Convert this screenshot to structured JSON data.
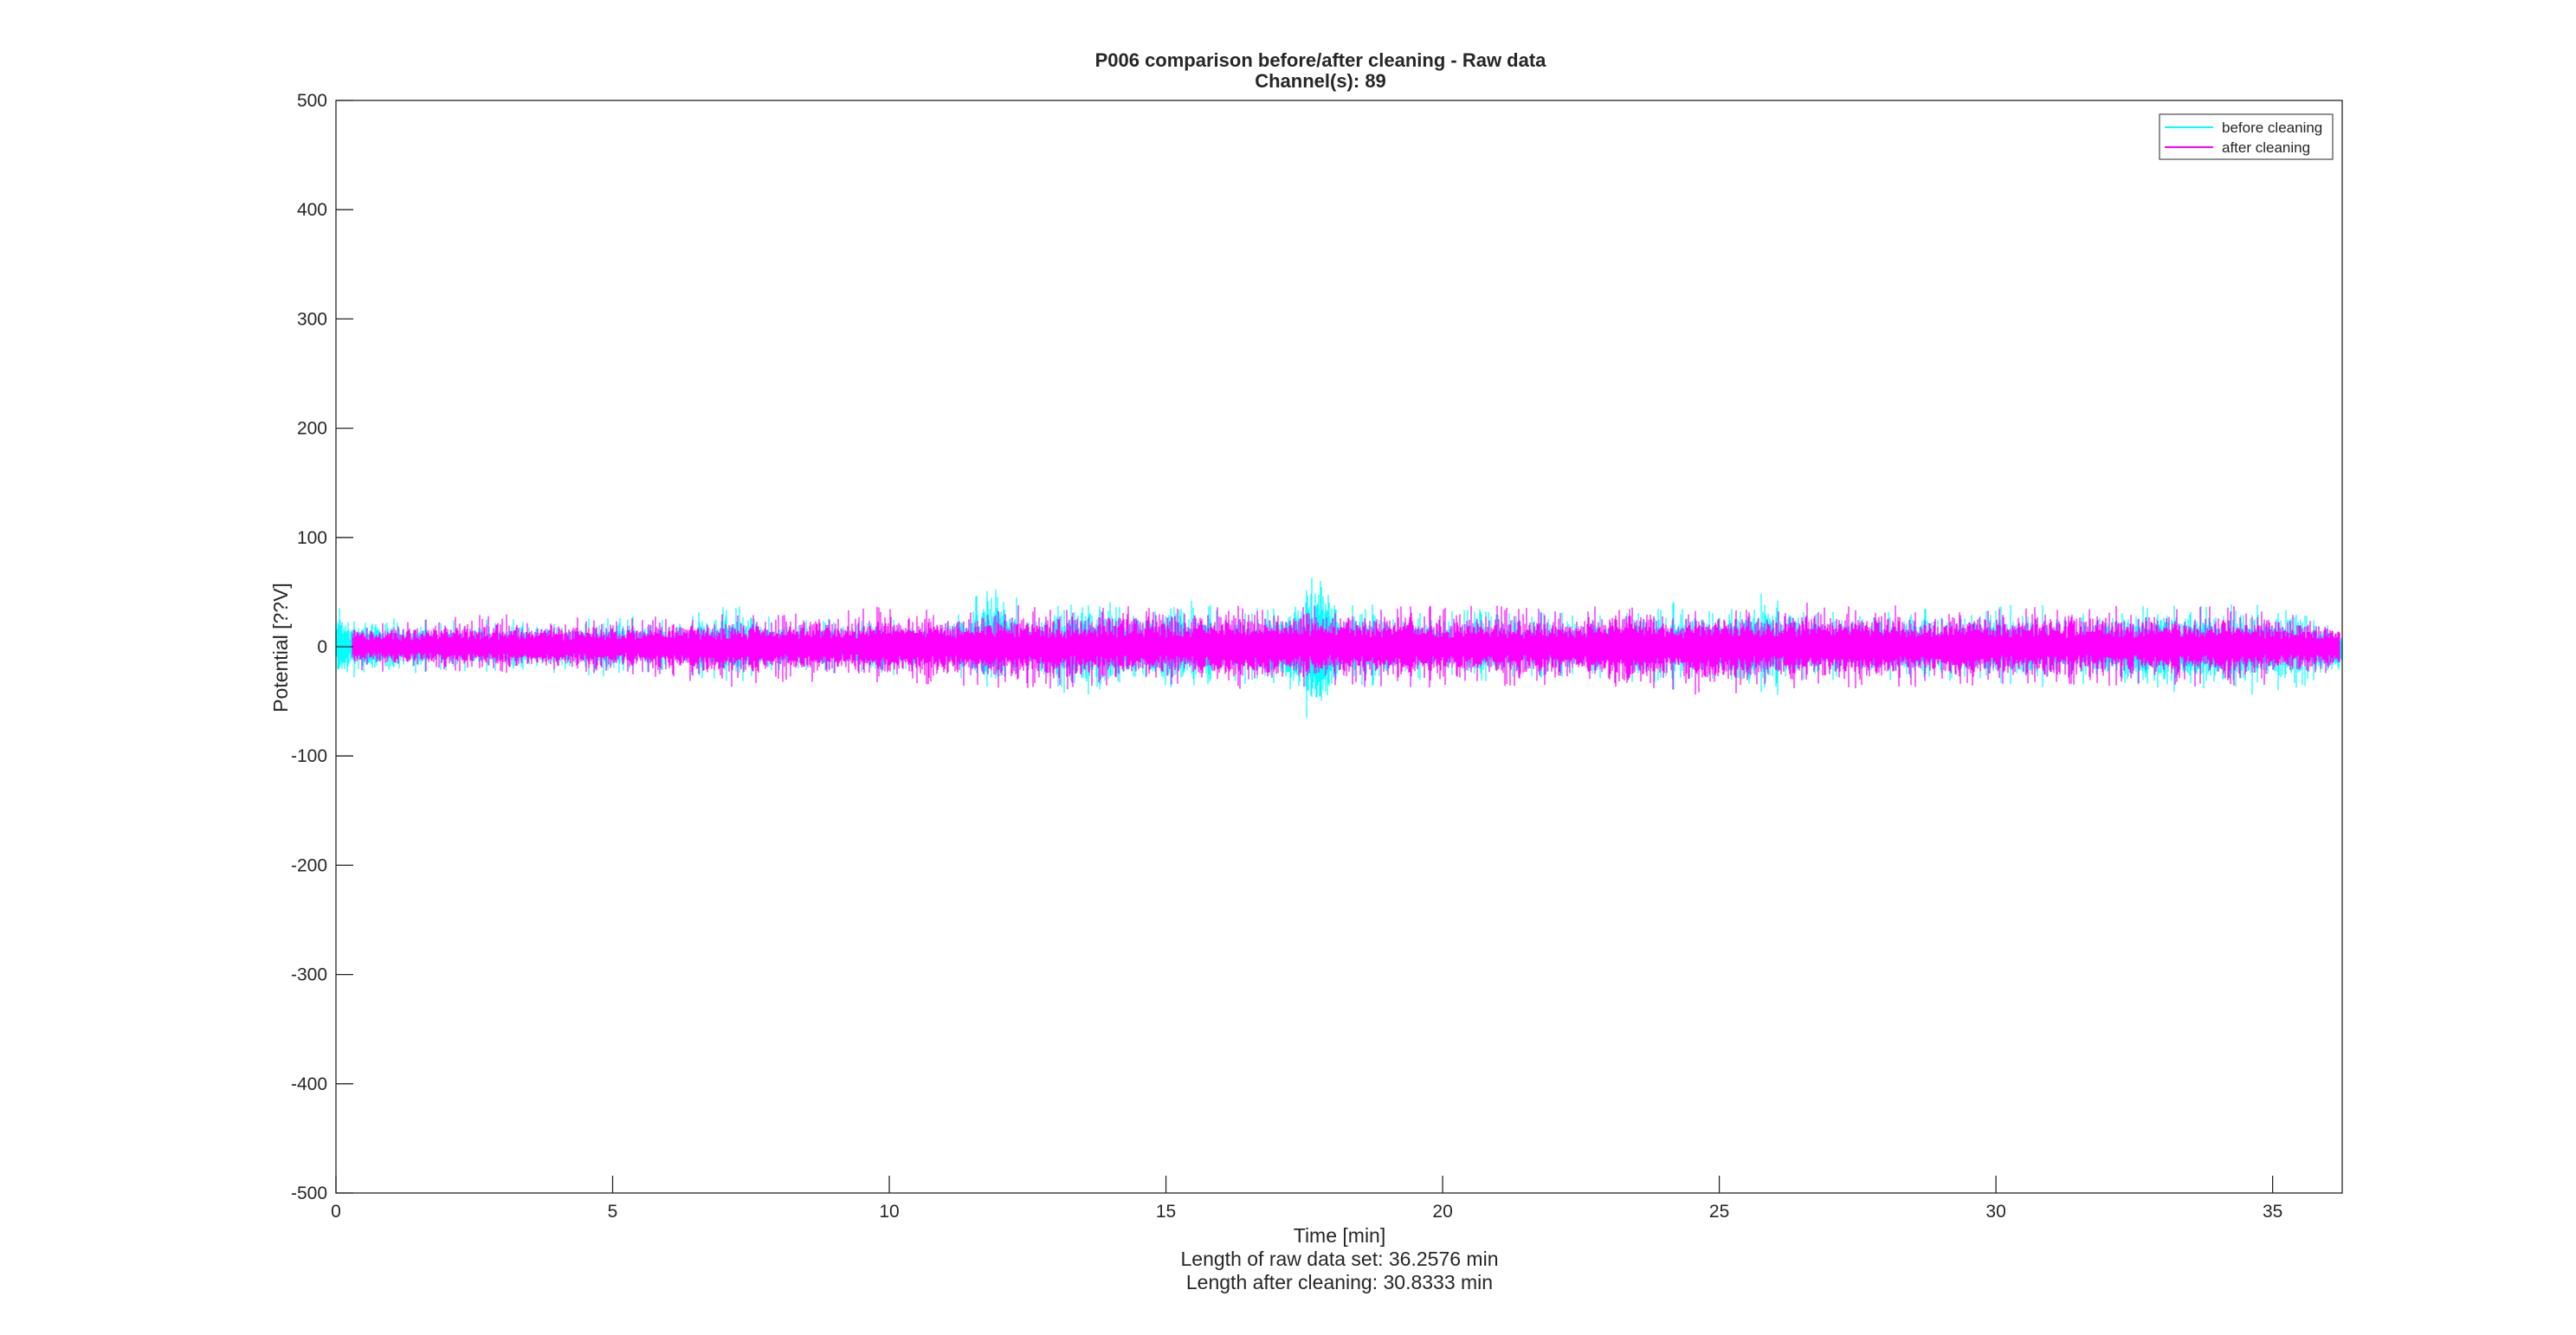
{
  "chart_data": {
    "type": "line",
    "title": "P006 comparison before/after cleaning - Raw data",
    "subtitle": "Channel(s): 89",
    "xlabel": "Time [min]",
    "xlabel_extra": [
      "Length of raw data set: 36.2576 min",
      "Length after cleaning: 30.8333 min"
    ],
    "ylabel": "Potential [??V]",
    "xlim": [
      0,
      36.2576
    ],
    "ylim": [
      -500,
      500
    ],
    "xticks": [
      0,
      5,
      10,
      15,
      20,
      25,
      30,
      35
    ],
    "yticks": [
      -500,
      -400,
      -300,
      -200,
      -100,
      0,
      100,
      200,
      300,
      400,
      500
    ],
    "xtick_labels": [
      "0",
      "5",
      "10",
      "15",
      "20",
      "25",
      "30",
      "35"
    ],
    "ytick_labels": [
      "-500",
      "-400",
      "-300",
      "-200",
      "-100",
      "0",
      "100",
      "200",
      "300",
      "400",
      "500"
    ],
    "grid": false,
    "legend_position": "top-right",
    "series": [
      {
        "name": "before cleaning",
        "color": "#00ffff",
        "band": [
          [
            0.0,
            -25,
            35
          ],
          [
            0.05,
            -45,
            55
          ],
          [
            0.2,
            -30,
            30
          ],
          [
            0.5,
            -25,
            28
          ],
          [
            1.0,
            -28,
            30
          ],
          [
            2.0,
            -22,
            25
          ],
          [
            3.0,
            -25,
            25
          ],
          [
            4.0,
            -24,
            26
          ],
          [
            5.0,
            -28,
            30
          ],
          [
            6.0,
            -22,
            25
          ],
          [
            7.1,
            -35,
            40
          ],
          [
            8.0,
            -24,
            26
          ],
          [
            9.0,
            -25,
            28
          ],
          [
            10.0,
            -30,
            32
          ],
          [
            11.0,
            -24,
            28
          ],
          [
            12.0,
            -42,
            68
          ],
          [
            12.5,
            -28,
            30
          ],
          [
            13.5,
            -50,
            50
          ],
          [
            14.5,
            -30,
            32
          ],
          [
            15.2,
            -45,
            50
          ],
          [
            16.0,
            -30,
            35
          ],
          [
            17.0,
            -40,
            42
          ],
          [
            17.4,
            -55,
            55
          ],
          [
            17.8,
            -85,
            90
          ],
          [
            18.2,
            -40,
            40
          ],
          [
            19.0,
            -35,
            38
          ],
          [
            20.0,
            -30,
            35
          ],
          [
            21.0,
            -32,
            35
          ],
          [
            22.0,
            -28,
            32
          ],
          [
            23.0,
            -30,
            30
          ],
          [
            24.3,
            -40,
            45
          ],
          [
            25.0,
            -30,
            32
          ],
          [
            25.8,
            -58,
            55
          ],
          [
            26.5,
            -30,
            32
          ],
          [
            27.5,
            -32,
            35
          ],
          [
            28.5,
            -35,
            36
          ],
          [
            29.5,
            -30,
            33
          ],
          [
            30.5,
            -40,
            40
          ],
          [
            31.5,
            -35,
            35
          ],
          [
            32.5,
            -45,
            40
          ],
          [
            33.5,
            -40,
            38
          ],
          [
            34.5,
            -45,
            42
          ],
          [
            35.5,
            -38,
            35
          ],
          [
            36.2576,
            -30,
            15
          ]
        ]
      },
      {
        "name": "after cleaning",
        "color": "#ff00ff",
        "band": [
          [
            0.3,
            -22,
            24
          ],
          [
            1.0,
            -25,
            26
          ],
          [
            2.0,
            -24,
            28
          ],
          [
            3.0,
            -28,
            30
          ],
          [
            4.0,
            -26,
            28
          ],
          [
            5.0,
            -26,
            27
          ],
          [
            6.0,
            -28,
            28
          ],
          [
            7.0,
            -38,
            30
          ],
          [
            8.0,
            -32,
            32
          ],
          [
            9.0,
            -33,
            35
          ],
          [
            10.0,
            -34,
            37
          ],
          [
            11.0,
            -35,
            35
          ],
          [
            12.0,
            -38,
            40
          ],
          [
            13.0,
            -40,
            36
          ],
          [
            14.0,
            -36,
            38
          ],
          [
            15.0,
            -36,
            42
          ],
          [
            16.0,
            -40,
            40
          ],
          [
            17.0,
            -38,
            39
          ],
          [
            18.0,
            -36,
            38
          ],
          [
            19.0,
            -39,
            40
          ],
          [
            20.0,
            -38,
            37
          ],
          [
            21.0,
            -36,
            38
          ],
          [
            22.0,
            -35,
            35
          ],
          [
            23.0,
            -40,
            38
          ],
          [
            24.0,
            -40,
            38
          ],
          [
            24.8,
            -48,
            38
          ],
          [
            26.0,
            -38,
            38
          ],
          [
            27.0,
            -40,
            45
          ],
          [
            28.0,
            -38,
            38
          ],
          [
            29.0,
            -38,
            37
          ],
          [
            30.0,
            -38,
            36
          ],
          [
            31.0,
            -35,
            38
          ],
          [
            32.0,
            -36,
            38
          ],
          [
            33.0,
            -36,
            38
          ],
          [
            34.0,
            -38,
            38
          ],
          [
            35.0,
            -35,
            36
          ],
          [
            36.0,
            -30,
            28
          ],
          [
            36.2,
            -30,
            28
          ]
        ]
      }
    ]
  }
}
